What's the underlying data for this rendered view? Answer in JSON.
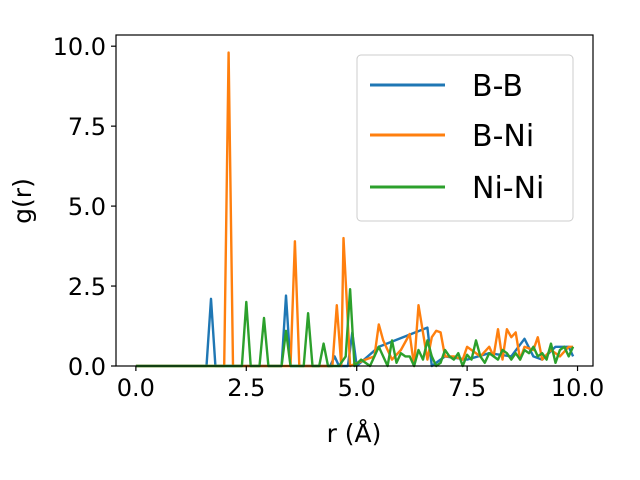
{
  "chart_data": {
    "type": "line",
    "title": "",
    "xlabel": "r (Å)",
    "ylabel": "g(r)",
    "xlim": [
      -0.45,
      10.35
    ],
    "ylim": [
      0,
      10.35
    ],
    "xticks": [
      0.0,
      2.5,
      5.0,
      7.5,
      10.0
    ],
    "xtick_labels": [
      "0.0",
      "2.5",
      "5.0",
      "7.5",
      "10.0"
    ],
    "yticks": [
      0.0,
      2.5,
      5.0,
      7.5,
      10.0
    ],
    "ytick_labels": [
      "0.0",
      "2.5",
      "5.0",
      "7.5",
      "10.0"
    ],
    "grid": false,
    "legend_position": "top-right",
    "series": [
      {
        "name": "B-B",
        "color": "#1f77b4",
        "x": [
          0.0,
          1.6,
          1.7,
          1.8,
          3.3,
          3.4,
          3.5,
          4.4,
          4.5,
          4.6,
          4.8,
          4.9,
          5.0,
          5.5,
          6.6,
          6.7,
          7.0,
          7.5,
          8.0,
          8.5,
          8.8,
          9.0,
          9.2,
          9.5,
          9.8,
          9.9
        ],
        "y": [
          0.0,
          0.0,
          2.1,
          0.0,
          0.0,
          2.2,
          0.0,
          0.0,
          0.3,
          0.0,
          0.0,
          1.05,
          0.0,
          0.6,
          1.2,
          0.0,
          0.3,
          0.2,
          0.4,
          0.3,
          0.85,
          0.3,
          0.2,
          0.6,
          0.6,
          0.3
        ]
      },
      {
        "name": "B-Ni",
        "color": "#ff7f0e",
        "x": [
          0.0,
          2.0,
          2.1,
          2.2,
          3.5,
          3.6,
          3.7,
          4.45,
          4.55,
          4.65,
          4.7,
          4.85,
          5.2,
          5.4,
          5.5,
          5.6,
          5.8,
          6.0,
          6.2,
          6.3,
          6.4,
          6.6,
          6.7,
          6.8,
          6.9,
          7.0,
          7.2,
          7.4,
          7.5,
          7.6,
          7.8,
          8.0,
          8.1,
          8.2,
          8.3,
          8.4,
          8.5,
          8.6,
          8.7,
          8.8,
          9.0,
          9.1,
          9.2,
          9.4,
          9.6,
          9.8,
          9.9
        ],
        "y": [
          0.0,
          0.0,
          9.8,
          0.0,
          0.0,
          3.9,
          0.0,
          0.0,
          1.9,
          0.0,
          4.0,
          0.0,
          0.2,
          0.3,
          1.3,
          0.8,
          0.2,
          0.5,
          1.0,
          0.0,
          1.9,
          0.2,
          0.9,
          1.1,
          1.05,
          0.3,
          0.3,
          0.2,
          0.6,
          0.5,
          0.3,
          0.6,
          0.3,
          1.15,
          0.2,
          1.15,
          0.9,
          1.05,
          0.2,
          0.6,
          0.5,
          0.9,
          0.2,
          0.5,
          0.3,
          0.6,
          0.6
        ]
      },
      {
        "name": "Ni-Ni",
        "color": "#2ca02c",
        "x": [
          0.0,
          2.4,
          2.5,
          2.6,
          2.8,
          2.9,
          3.0,
          3.3,
          3.4,
          3.5,
          3.8,
          3.9,
          4.0,
          4.15,
          4.25,
          4.35,
          4.6,
          4.75,
          4.85,
          4.95,
          5.1,
          5.3,
          5.5,
          5.7,
          5.8,
          5.9,
          6.0,
          6.1,
          6.2,
          6.3,
          6.4,
          6.5,
          6.6,
          6.7,
          6.8,
          6.9,
          7.0,
          7.1,
          7.2,
          7.3,
          7.4,
          7.5,
          7.6,
          7.7,
          7.8,
          7.9,
          8.0,
          8.1,
          8.2,
          8.3,
          8.4,
          8.5,
          8.6,
          8.7,
          8.8,
          8.9,
          9.0,
          9.1,
          9.2,
          9.3,
          9.4,
          9.5,
          9.6,
          9.7,
          9.8,
          9.9
        ],
        "y": [
          0.0,
          0.0,
          2.0,
          0.0,
          0.0,
          1.5,
          0.0,
          0.0,
          1.1,
          0.0,
          0.0,
          1.65,
          0.0,
          0.0,
          0.7,
          0.0,
          0.0,
          0.3,
          2.4,
          0.0,
          0.2,
          0.0,
          0.6,
          0.0,
          0.8,
          0.1,
          0.4,
          0.3,
          0.3,
          0.0,
          0.5,
          0.2,
          0.8,
          0.3,
          0.0,
          0.1,
          0.5,
          0.3,
          0.2,
          0.4,
          0.0,
          0.35,
          0.2,
          0.8,
          0.3,
          0.1,
          0.4,
          0.3,
          0.2,
          0.5,
          0.4,
          0.2,
          0.4,
          0.2,
          0.5,
          0.4,
          0.6,
          0.3,
          0.4,
          0.2,
          0.7,
          0.1,
          0.5,
          0.6,
          0.3,
          0.6
        ]
      }
    ]
  }
}
